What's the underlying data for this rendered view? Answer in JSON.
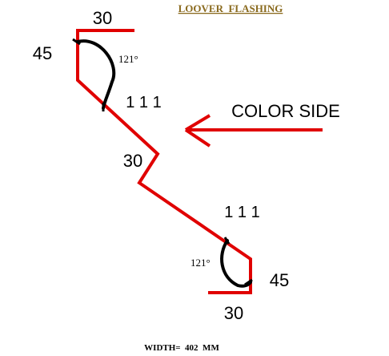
{
  "title": "LOOVER  FLASHING",
  "dimensions": {
    "top_flange": "30",
    "top_bend": "45",
    "top_angle": "121°",
    "upper_segment": "111",
    "middle_step": "30",
    "lower_segment": "111",
    "bottom_angle": "121°",
    "bottom_bend": "45",
    "bottom_flange": "30"
  },
  "color_side_label": "COLOR SIDE",
  "width_label": "WIDTH=  402  MM",
  "colors": {
    "title": "#8a6a1e",
    "profile": "#e00000",
    "arc": "#000000",
    "text": "#000000"
  },
  "icons": [
    "color-side-arrow-icon",
    "angle-arc-icon"
  ]
}
